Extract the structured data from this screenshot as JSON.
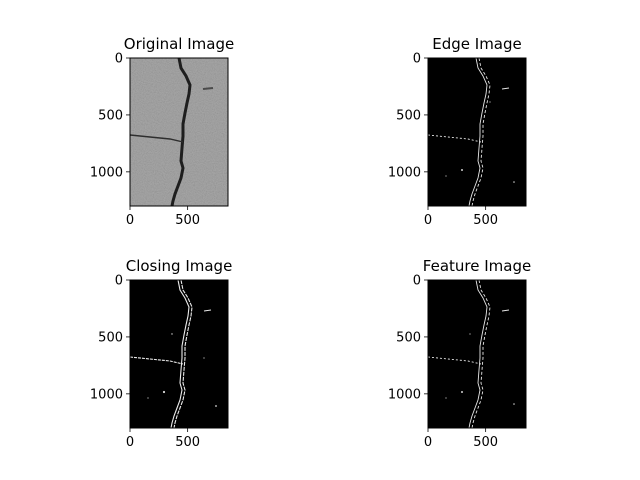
{
  "chart_data": [
    {
      "type": "image",
      "title": "Original Image",
      "image_style": "grayscale-photo",
      "image_size": [
        850,
        1300
      ],
      "x_ticks": [
        0,
        500
      ],
      "y_ticks": [
        0,
        500,
        1000
      ],
      "xlim": [
        0,
        850
      ],
      "ylim": [
        1300,
        0
      ]
    },
    {
      "type": "image",
      "title": "Edge Image",
      "image_style": "binary-edges",
      "image_size": [
        850,
        1300
      ],
      "x_ticks": [
        0,
        500
      ],
      "y_ticks": [
        0,
        500,
        1000
      ],
      "xlim": [
        0,
        850
      ],
      "ylim": [
        1300,
        0
      ]
    },
    {
      "type": "image",
      "title": "Closing Image",
      "image_style": "binary-edges",
      "image_size": [
        850,
        1300
      ],
      "x_ticks": [
        0,
        500
      ],
      "y_ticks": [
        0,
        500,
        1000
      ],
      "xlim": [
        0,
        850
      ],
      "ylim": [
        1300,
        0
      ]
    },
    {
      "type": "image",
      "title": "Feature Image",
      "image_style": "binary-edges",
      "image_size": [
        850,
        1300
      ],
      "x_ticks": [
        0,
        500
      ],
      "y_ticks": [
        0,
        500,
        1000
      ],
      "xlim": [
        0,
        850
      ],
      "ylim": [
        1300,
        0
      ]
    }
  ],
  "colors": {
    "background": "#ffffff",
    "edge_background": "#000000",
    "edge_line": "#e8e8e8",
    "photo_base": "#a9a9a9",
    "crack": "#1e1e1e"
  }
}
